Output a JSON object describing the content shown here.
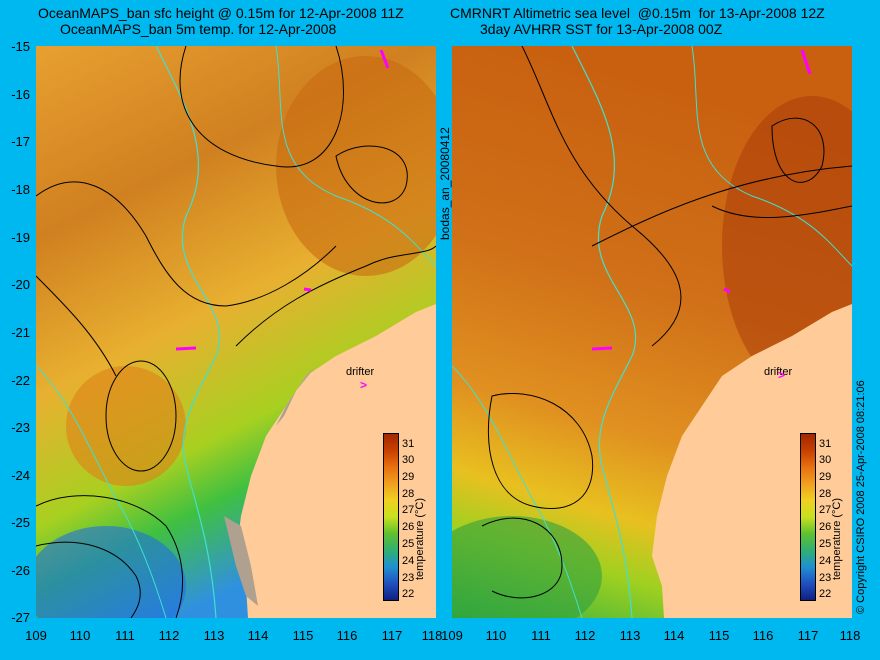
{
  "titles": {
    "left_line1": "OceanMAPS_ban sfc height @ 0.15m for 12-Apr-2008 11Z",
    "left_line2": "OceanMAPS_ban 5m temp. for 12-Apr-2008",
    "right_line1": "CMRNRT Altimetric sea level  @0.15m  for 13-Apr-2008 12Z",
    "right_line2": "3day AVHRR SST for 13-Apr-2008 00Z"
  },
  "axes": {
    "y_ticks": [
      "-15",
      "-16",
      "-17",
      "-18",
      "-19",
      "-20",
      "-21",
      "-22",
      "-23",
      "-24",
      "-25",
      "-26",
      "-27"
    ],
    "x_ticks": [
      "109",
      "110",
      "111",
      "112",
      "113",
      "114",
      "115",
      "116",
      "117",
      "118"
    ]
  },
  "colorbar": {
    "label": "temperature (°C)",
    "ticks": [
      "31",
      "30",
      "29",
      "28",
      "27",
      "26",
      "25",
      "24",
      "23",
      "22"
    ]
  },
  "annotations": {
    "drifter": "drifter",
    "vertical_id": "bodas_an_20080412",
    "copyright": "© Copyright CSIRO 2008   25-Apr-2008 08:21:06"
  },
  "colors": {
    "background": "#00b8f0",
    "land": "#ffcc99",
    "contour": "#000000",
    "isobath": "#40e0d0",
    "drifter_marker": "#ff00ff"
  }
}
